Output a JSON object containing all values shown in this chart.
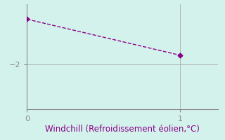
{
  "x_data": [
    0,
    1
  ],
  "y_data": [
    -0.5,
    -1.7
  ],
  "line_color": "#880088",
  "bg_color": "#d4f2ec",
  "xlabel": "Windchill (Refroidissement éolien,°C)",
  "xlabel_color": "#880088",
  "xlabel_fontsize": 8.5,
  "axis_color": "#888888",
  "grid_color": "#aaaaaa",
  "xlim": [
    0,
    1.25
  ],
  "ylim": [
    -3.5,
    -0.0
  ],
  "ytick_val": -2,
  "xticks": [
    0,
    1
  ],
  "marker": "D",
  "markersize": 3.5,
  "linewidth": 1.0,
  "linestyle": "--"
}
